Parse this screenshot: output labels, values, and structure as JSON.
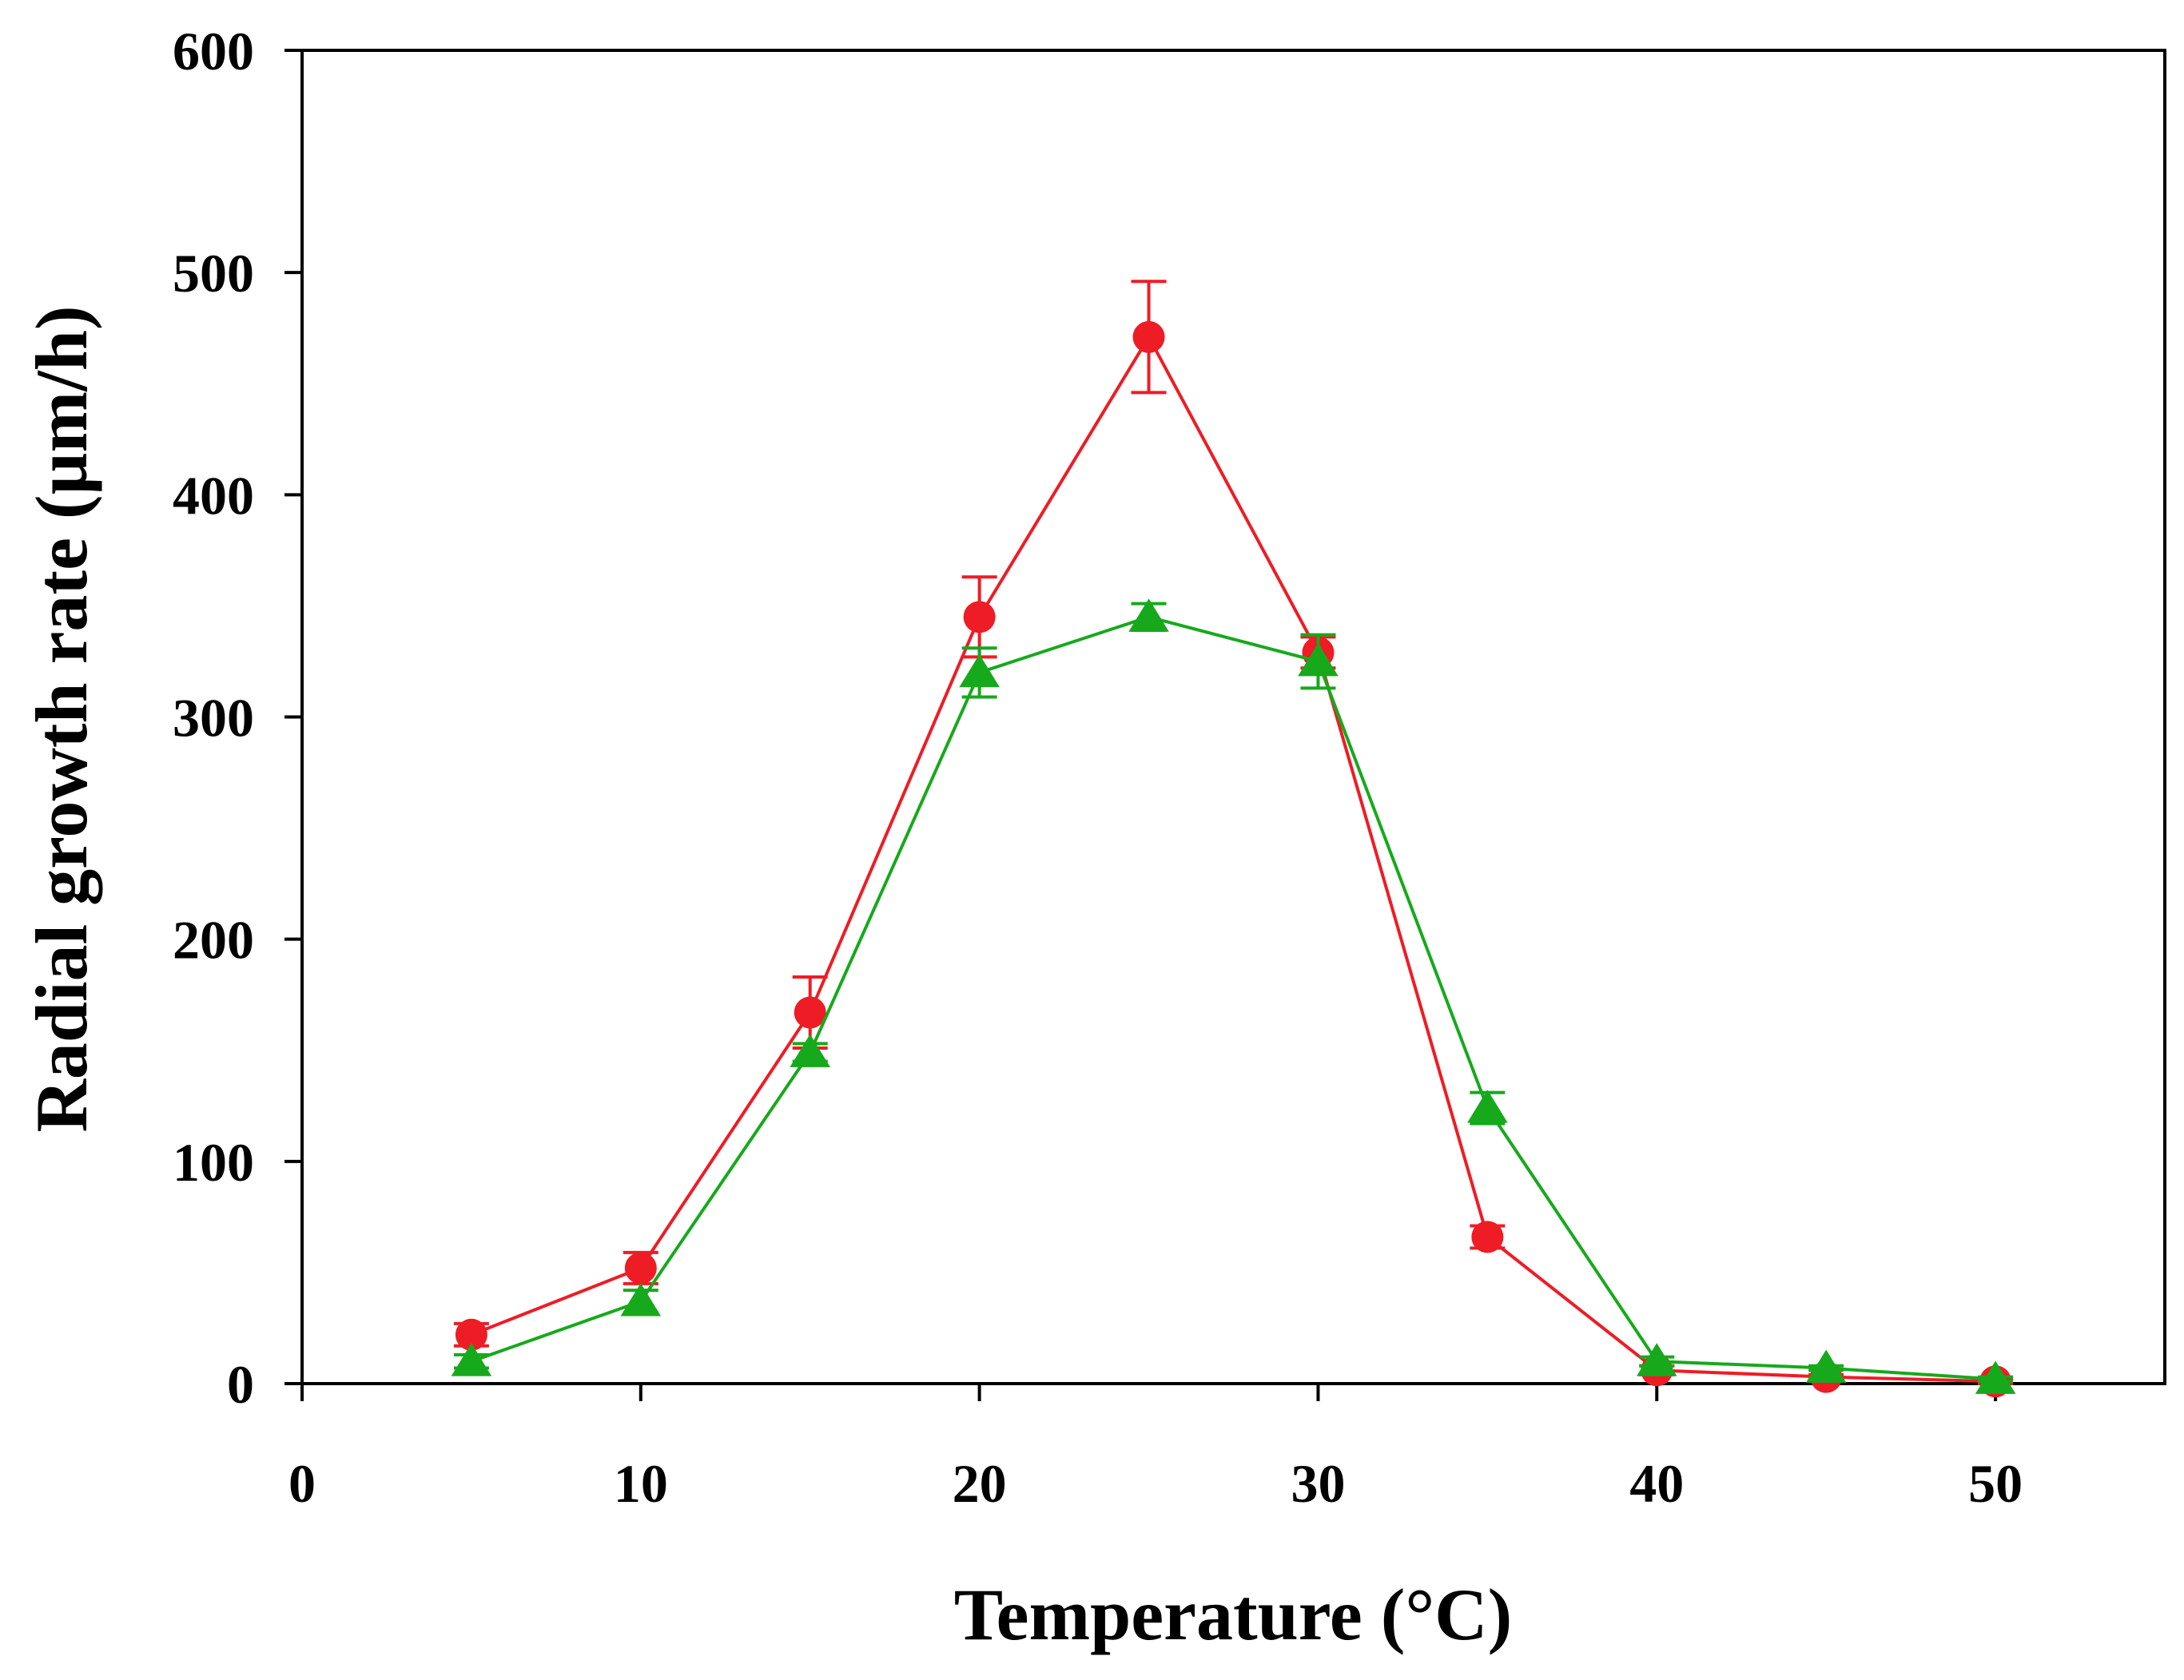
{
  "chart_data": {
    "type": "line",
    "title": "",
    "xlabel": "Temperature (°C)",
    "ylabel": "Radial growth rate (µm/h)",
    "xlim": [
      0,
      55
    ],
    "ylim": [
      0,
      600
    ],
    "xticks": [
      "0",
      "10",
      "20",
      "30",
      "40",
      "50"
    ],
    "yticks": [
      "0",
      "100",
      "200",
      "300",
      "400",
      "500",
      "600"
    ],
    "grid": false,
    "legend": "none",
    "series": [
      {
        "name": "red circles",
        "marker": "circle",
        "color": "#ee1c25",
        "x": [
          5,
          10,
          15,
          20,
          25,
          30,
          35,
          40,
          45,
          50
        ],
        "values": [
          22,
          52,
          167,
          345,
          471,
          329,
          66,
          6,
          3,
          1
        ],
        "errors": [
          5,
          7,
          16,
          18,
          25,
          7,
          5,
          2,
          1,
          1
        ]
      },
      {
        "name": "green triangles",
        "marker": "triangle",
        "color": "#17a91c",
        "x": [
          5,
          10,
          15,
          20,
          25,
          30,
          35,
          40,
          45,
          50
        ],
        "values": [
          10,
          37,
          149,
          320,
          345,
          325,
          124,
          10,
          7,
          2
        ],
        "errors": [
          3,
          5,
          4,
          11,
          6,
          12,
          7,
          2,
          1,
          1
        ]
      }
    ]
  }
}
